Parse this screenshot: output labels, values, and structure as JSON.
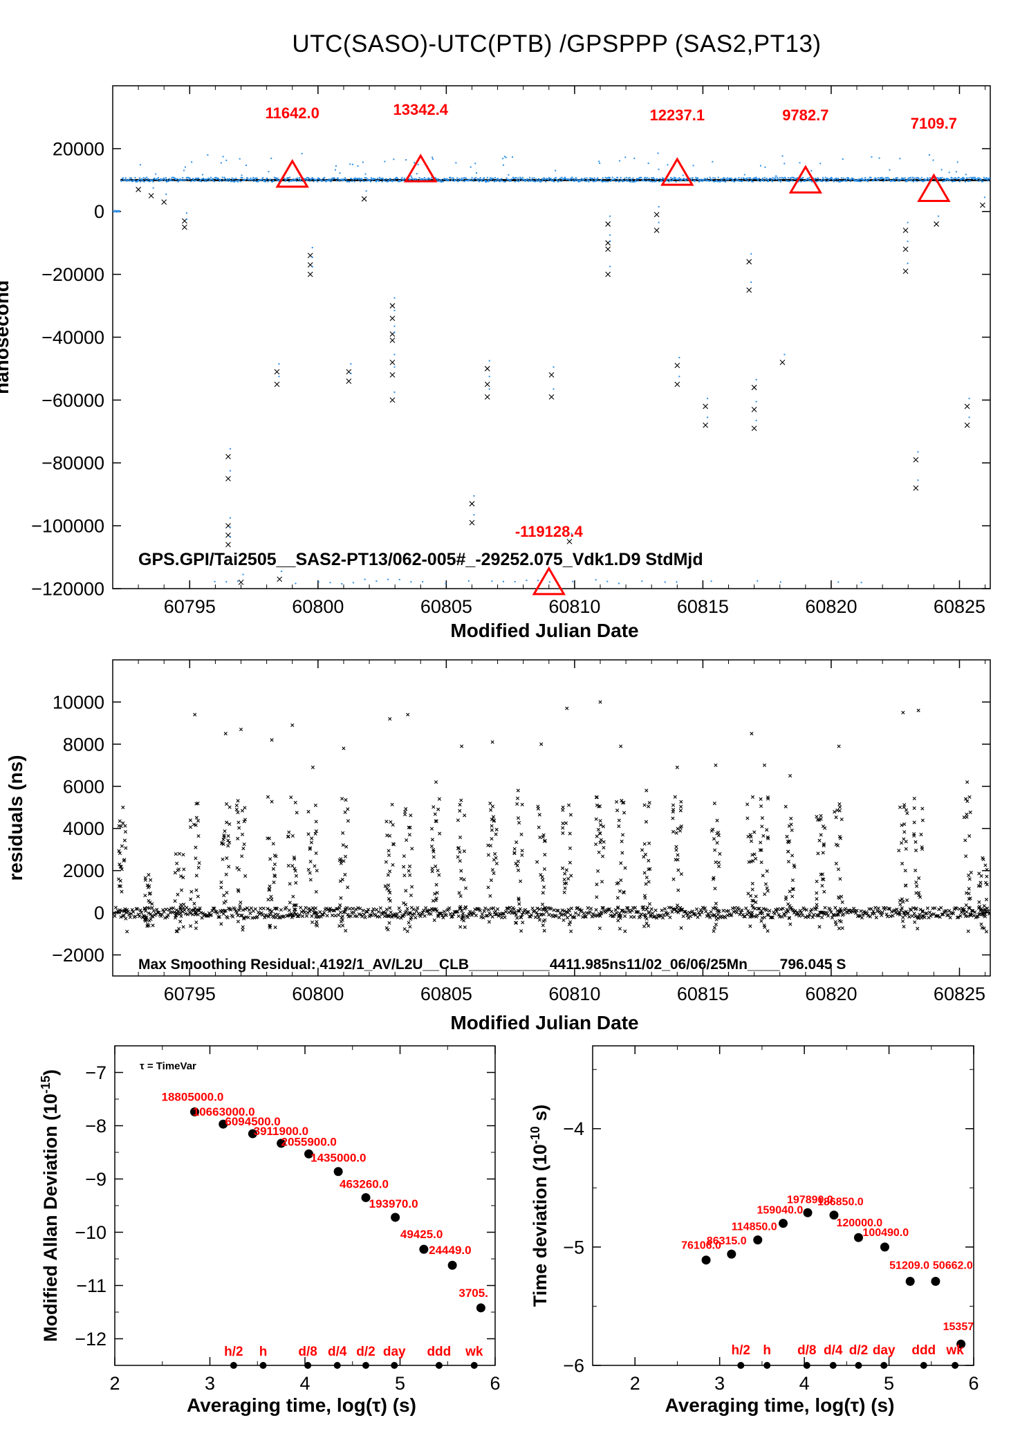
{
  "page": {
    "title": "UTC(SASO)-UTC(PTB)  /GPSPPP  (SAS2,PT13)"
  },
  "colors": {
    "raw_points": "#2a8ee6",
    "smoothed_points": "#000000",
    "annotation": "#ff0000",
    "frame": "#000000"
  },
  "chart_data": [
    {
      "id": "time-series",
      "type": "scatter",
      "xlabel": "Modified Julian Date",
      "ylabel": "nanosecond",
      "xlim": [
        60792.0,
        60826.2
      ],
      "ylim": [
        -120000,
        40000
      ],
      "xticks": [
        60795,
        60800,
        60805,
        60810,
        60815,
        60820,
        60825
      ],
      "yticks": [
        -120000,
        -100000,
        -80000,
        -60000,
        -40000,
        -20000,
        0,
        20000
      ],
      "ytick_labels": [
        "−120000",
        "−100000",
        "−80000",
        "−60000",
        "−40000",
        "−20000",
        "0",
        "20000"
      ],
      "footer_text": "GPS.GPI/Tai2505__SAS2-PT13/062-005#_-29252.075_Vdk1.D9  StdMjd",
      "baseline_level": 10000,
      "initial_level": 0,
      "markers": [
        {
          "mjd": 60799.0,
          "value": 11642.0,
          "label": "11642.0"
        },
        {
          "mjd": 60804.0,
          "value": 13342.4,
          "label": "13342.4"
        },
        {
          "mjd": 60809.0,
          "value": -119128.4,
          "label": "-119128.4"
        },
        {
          "mjd": 60814.0,
          "value": 12237.1,
          "label": "12237.1"
        },
        {
          "mjd": 60819.0,
          "value": 9782.7,
          "label": "9782.7"
        },
        {
          "mjd": 60824.0,
          "value": 7109.7,
          "label": "7109.7"
        }
      ],
      "outliers": [
        {
          "mjd": 60793.0,
          "value": 7000
        },
        {
          "mjd": 60793.5,
          "value": 5000
        },
        {
          "mjd": 60794.0,
          "value": 3000
        },
        {
          "mjd": 60794.8,
          "value": -3000
        },
        {
          "mjd": 60794.8,
          "value": -5000
        },
        {
          "mjd": 60796.5,
          "value": -78000
        },
        {
          "mjd": 60796.5,
          "value": -85000
        },
        {
          "mjd": 60796.5,
          "value": -100000
        },
        {
          "mjd": 60796.5,
          "value": -103000
        },
        {
          "mjd": 60796.5,
          "value": -106000
        },
        {
          "mjd": 60797.0,
          "value": -118000
        },
        {
          "mjd": 60798.4,
          "value": -51000
        },
        {
          "mjd": 60798.4,
          "value": -55000
        },
        {
          "mjd": 60798.5,
          "value": -117000
        },
        {
          "mjd": 60799.7,
          "value": -14000
        },
        {
          "mjd": 60799.7,
          "value": -17000
        },
        {
          "mjd": 60799.7,
          "value": -20000
        },
        {
          "mjd": 60801.2,
          "value": -51000
        },
        {
          "mjd": 60801.2,
          "value": -54000
        },
        {
          "mjd": 60801.8,
          "value": 4000
        },
        {
          "mjd": 60802.9,
          "value": -30000
        },
        {
          "mjd": 60802.9,
          "value": -34000
        },
        {
          "mjd": 60802.9,
          "value": -39000
        },
        {
          "mjd": 60802.9,
          "value": -41000
        },
        {
          "mjd": 60802.9,
          "value": -48000
        },
        {
          "mjd": 60802.9,
          "value": -52000
        },
        {
          "mjd": 60802.9,
          "value": -60000
        },
        {
          "mjd": 60806.0,
          "value": -93000
        },
        {
          "mjd": 60806.0,
          "value": -99000
        },
        {
          "mjd": 60806.6,
          "value": -50000
        },
        {
          "mjd": 60806.6,
          "value": -55000
        },
        {
          "mjd": 60806.6,
          "value": -59000
        },
        {
          "mjd": 60809.1,
          "value": -52000
        },
        {
          "mjd": 60809.1,
          "value": -59000
        },
        {
          "mjd": 60809.8,
          "value": -105000
        },
        {
          "mjd": 60811.3,
          "value": -4000
        },
        {
          "mjd": 60811.3,
          "value": -10000
        },
        {
          "mjd": 60811.3,
          "value": -12000
        },
        {
          "mjd": 60811.3,
          "value": -20000
        },
        {
          "mjd": 60813.2,
          "value": -1000
        },
        {
          "mjd": 60813.2,
          "value": -6000
        },
        {
          "mjd": 60814.0,
          "value": -49000
        },
        {
          "mjd": 60814.0,
          "value": -55000
        },
        {
          "mjd": 60815.1,
          "value": -62000
        },
        {
          "mjd": 60815.1,
          "value": -68000
        },
        {
          "mjd": 60816.8,
          "value": -16000
        },
        {
          "mjd": 60816.8,
          "value": -25000
        },
        {
          "mjd": 60817.0,
          "value": -56000
        },
        {
          "mjd": 60817.0,
          "value": -63000
        },
        {
          "mjd": 60817.0,
          "value": -69000
        },
        {
          "mjd": 60818.1,
          "value": -48000
        },
        {
          "mjd": 60822.9,
          "value": -6000
        },
        {
          "mjd": 60822.9,
          "value": -12000
        },
        {
          "mjd": 60822.9,
          "value": -19000
        },
        {
          "mjd": 60823.3,
          "value": -79000
        },
        {
          "mjd": 60823.3,
          "value": -88000
        },
        {
          "mjd": 60824.1,
          "value": -4000
        },
        {
          "mjd": 60825.3,
          "value": -62000
        },
        {
          "mjd": 60825.3,
          "value": -68000
        },
        {
          "mjd": 60825.9,
          "value": 2000
        }
      ]
    },
    {
      "id": "residuals",
      "type": "scatter",
      "xlabel": "Modified Julian Date",
      "ylabel": "residuals (ns)",
      "xlim": [
        60792.0,
        60826.2
      ],
      "ylim": [
        -3000,
        12000
      ],
      "xticks": [
        60795,
        60800,
        60805,
        60810,
        60815,
        60820,
        60825
      ],
      "yticks": [
        -2000,
        0,
        2000,
        4000,
        6000,
        8000,
        10000
      ],
      "ytick_labels": [
        "−2000",
        "0",
        "2000",
        "4000",
        "6000",
        "8000",
        "10000"
      ],
      "footer_text": "Max Smoothing Residual: 4192/1_AV/L2U__CLB__________4411.985ns11/02_06/06/25Mn____796.045  S",
      "clusters": [
        {
          "mjd": 60792.4,
          "top": 5000
        },
        {
          "mjd": 60793.4,
          "top": 1800
        },
        {
          "mjd": 60794.6,
          "top": 2800
        },
        {
          "mjd": 60795.2,
          "top": 9400
        },
        {
          "mjd": 60796.4,
          "top": 8500
        },
        {
          "mjd": 60797.0,
          "top": 8700
        },
        {
          "mjd": 60798.2,
          "top": 8200
        },
        {
          "mjd": 60799.0,
          "top": 8900
        },
        {
          "mjd": 60799.8,
          "top": 6900
        },
        {
          "mjd": 60801.0,
          "top": 7800
        },
        {
          "mjd": 60802.8,
          "top": 9200
        },
        {
          "mjd": 60803.5,
          "top": 9400
        },
        {
          "mjd": 60804.6,
          "top": 6200
        },
        {
          "mjd": 60805.6,
          "top": 7900
        },
        {
          "mjd": 60806.8,
          "top": 8100
        },
        {
          "mjd": 60807.8,
          "top": 5800
        },
        {
          "mjd": 60808.7,
          "top": 8000
        },
        {
          "mjd": 60809.7,
          "top": 9700
        },
        {
          "mjd": 60811.0,
          "top": 10000
        },
        {
          "mjd": 60811.8,
          "top": 7900
        },
        {
          "mjd": 60812.8,
          "top": 5800
        },
        {
          "mjd": 60814.0,
          "top": 6900
        },
        {
          "mjd": 60815.5,
          "top": 7000
        },
        {
          "mjd": 60816.9,
          "top": 8500
        },
        {
          "mjd": 60817.4,
          "top": 7000
        },
        {
          "mjd": 60818.4,
          "top": 6500
        },
        {
          "mjd": 60819.6,
          "top": 4600
        },
        {
          "mjd": 60820.3,
          "top": 7900
        },
        {
          "mjd": 60822.8,
          "top": 9500
        },
        {
          "mjd": 60823.4,
          "top": 9600
        },
        {
          "mjd": 60825.3,
          "top": 6200
        },
        {
          "mjd": 60825.9,
          "top": 2600
        }
      ]
    },
    {
      "id": "modified-allan-deviation",
      "type": "scatter",
      "xlabel": "Averaging time, log(τ) (s)",
      "ylabel_main": "Modified Allan Deviation (10",
      "ylabel_exp": "-15",
      "ylabel_tail": ")",
      "legend": "τ = TimeVar",
      "xlim": [
        2,
        6
      ],
      "ylim": [
        -12.5,
        -6.5
      ],
      "xticks": [
        2,
        3,
        4,
        5,
        6
      ],
      "yticks": [
        -12,
        -11,
        -10,
        -9,
        -8,
        -7
      ],
      "ytick_labels": [
        "−12",
        "−11",
        "−10",
        "−9",
        "−8",
        "−7"
      ],
      "points": [
        {
          "x": 2.84,
          "y": -7.74,
          "label": "18805000.0"
        },
        {
          "x": 3.14,
          "y": -7.97,
          "label": "10663000.0"
        },
        {
          "x": 3.45,
          "y": -8.15,
          "label": "6094500.0"
        },
        {
          "x": 3.75,
          "y": -8.33,
          "label": "3911900.0"
        },
        {
          "x": 4.04,
          "y": -8.53,
          "label": "2055900.0"
        },
        {
          "x": 4.35,
          "y": -8.86,
          "label": "1435000.0"
        },
        {
          "x": 4.64,
          "y": -9.35,
          "label": "463260.0"
        },
        {
          "x": 4.95,
          "y": -9.72,
          "label": "193970.0"
        },
        {
          "x": 5.25,
          "y": -10.32,
          "label": "49425.0"
        },
        {
          "x": 5.55,
          "y": -10.62,
          "label": "24449.0"
        },
        {
          "x": 5.85,
          "y": -11.42,
          "label": "3705."
        }
      ],
      "time_marks": [
        {
          "x": 3.25,
          "label": "h/2"
        },
        {
          "x": 3.56,
          "label": "h"
        },
        {
          "x": 4.03,
          "label": "d/8"
        },
        {
          "x": 4.34,
          "label": "d/4"
        },
        {
          "x": 4.64,
          "label": "d/2"
        },
        {
          "x": 4.94,
          "label": "day"
        },
        {
          "x": 5.41,
          "label": "ddd"
        },
        {
          "x": 5.78,
          "label": "wk"
        }
      ]
    },
    {
      "id": "time-deviation",
      "type": "scatter",
      "xlabel": "Averaging time, log(τ) (s)",
      "ylabel_main": "Time deviation (10",
      "ylabel_exp": "-10",
      "ylabel_tail": " s)",
      "xlim": [
        1.5,
        6.0
      ],
      "ylim": [
        -6.0,
        -3.3
      ],
      "xticks": [
        2,
        3,
        4,
        5,
        6
      ],
      "yticks": [
        -6,
        -5,
        -4
      ],
      "ytick_labels": [
        "−6",
        "−5",
        "−4"
      ],
      "points": [
        {
          "x": 2.84,
          "y": -5.11,
          "label": "76106.0"
        },
        {
          "x": 3.14,
          "y": -5.06,
          "label": "86315.0"
        },
        {
          "x": 3.45,
          "y": -4.94,
          "label": "114850.0"
        },
        {
          "x": 3.75,
          "y": -4.8,
          "label": "159040.0"
        },
        {
          "x": 4.04,
          "y": -4.71,
          "label": "197890.0"
        },
        {
          "x": 4.35,
          "y": -4.73,
          "label": "186850.0"
        },
        {
          "x": 4.64,
          "y": -4.92,
          "label": "120000.0"
        },
        {
          "x": 4.95,
          "y": -5.0,
          "label": "100490.0"
        },
        {
          "x": 5.25,
          "y": -5.29,
          "label": "51209.0"
        },
        {
          "x": 5.55,
          "y": -5.29,
          "label": "50662.0"
        },
        {
          "x": 5.85,
          "y": -5.82,
          "label": "15357"
        }
      ],
      "time_marks": [
        {
          "x": 3.25,
          "label": "h/2"
        },
        {
          "x": 3.56,
          "label": "h"
        },
        {
          "x": 4.03,
          "label": "d/8"
        },
        {
          "x": 4.34,
          "label": "d/4"
        },
        {
          "x": 4.64,
          "label": "d/2"
        },
        {
          "x": 4.94,
          "label": "day"
        },
        {
          "x": 5.41,
          "label": "ddd"
        },
        {
          "x": 5.78,
          "label": "wk"
        }
      ]
    }
  ]
}
